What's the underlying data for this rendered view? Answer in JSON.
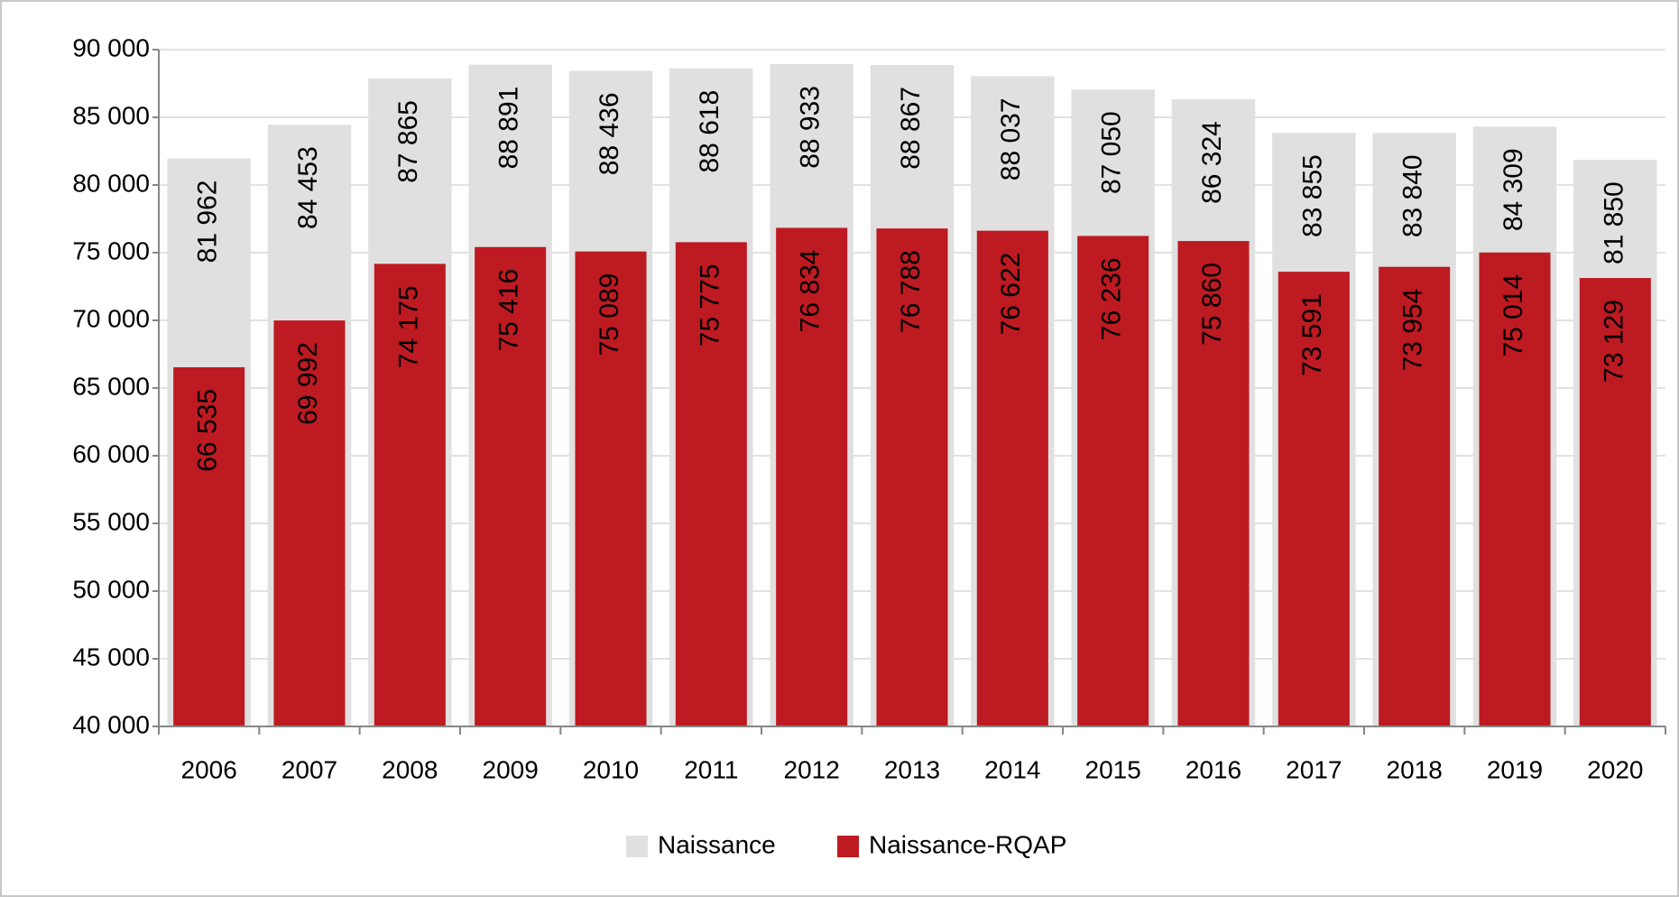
{
  "chart_data": {
    "type": "bar",
    "categories": [
      "2006",
      "2007",
      "2008",
      "2009",
      "2010",
      "2011",
      "2012",
      "2013",
      "2014",
      "2015",
      "2016",
      "2017",
      "2018",
      "2019",
      "2020"
    ],
    "series": [
      {
        "name": "Naissance",
        "color": "#e0e0e0",
        "values": [
          81962,
          84453,
          87865,
          88891,
          88436,
          88618,
          88933,
          88867,
          88037,
          87050,
          86324,
          83855,
          83840,
          84309,
          81850
        ],
        "value_labels": [
          "81 962",
          "84 453",
          "87 865",
          "88 891",
          "88 436",
          "88 618",
          "88 933",
          "88 867",
          "88 037",
          "87 050",
          "86 324",
          "83 855",
          "83 840",
          "84 309",
          "81 850"
        ]
      },
      {
        "name": "Naissance-RQAP",
        "color": "#be1a21",
        "values": [
          66535,
          69992,
          74175,
          75416,
          75089,
          75775,
          76834,
          76788,
          76622,
          76236,
          75860,
          73591,
          73954,
          75014,
          73129
        ],
        "value_labels": [
          "66 535",
          "69 992",
          "74 175",
          "75 416",
          "75 089",
          "75 775",
          "76 834",
          "76 788",
          "76 622",
          "76 236",
          "75 860",
          "73 591",
          "73 954",
          "75 014",
          "73 129"
        ]
      }
    ],
    "ylim": [
      40000,
      90000
    ],
    "yticks": [
      {
        "value": 40000,
        "label": "40 000"
      },
      {
        "value": 45000,
        "label": "45 000"
      },
      {
        "value": 50000,
        "label": "50 000"
      },
      {
        "value": 55000,
        "label": "55 000"
      },
      {
        "value": 60000,
        "label": "60 000"
      },
      {
        "value": 65000,
        "label": "65 000"
      },
      {
        "value": 70000,
        "label": "70 000"
      },
      {
        "value": 75000,
        "label": "75 000"
      },
      {
        "value": 80000,
        "label": "80 000"
      },
      {
        "value": 85000,
        "label": "85 000"
      },
      {
        "value": 90000,
        "label": "90 000"
      }
    ],
    "grid": true,
    "legend": "bottom"
  }
}
